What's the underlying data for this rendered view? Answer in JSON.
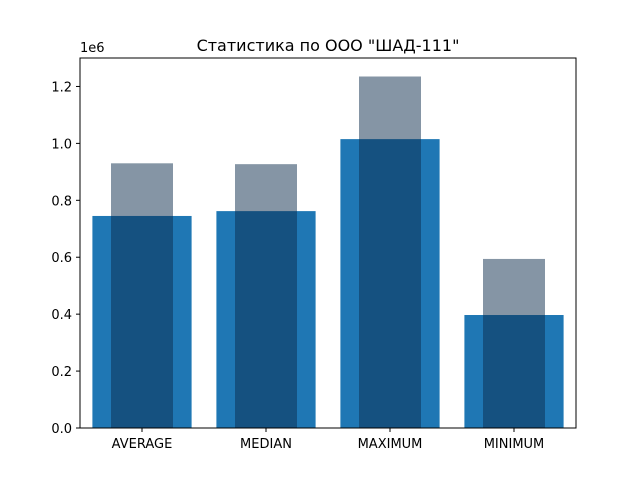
{
  "chart_data": {
    "type": "bar",
    "title": "Статистика по ООО \"ШАД-111\"",
    "xlabel": "",
    "ylabel": "",
    "y_offset_label": "1e6",
    "categories": [
      "AVERAGE",
      "MEDIAN",
      "MAXIMUM",
      "MINIMUM"
    ],
    "ylim": [
      0,
      1.3
    ],
    "yticks": [
      "0.0",
      "0.2",
      "0.4",
      "0.6",
      "0.8",
      "1.0",
      "1.2"
    ],
    "grid": false,
    "legend": "none",
    "series": [
      {
        "values": [
          0.745,
          0.762,
          1.015,
          0.397
        ],
        "color": "#1f77b4",
        "opacity": 1.0,
        "bar_width": 0.8
      },
      {
        "values": [
          0.93,
          0.927,
          1.235,
          0.594
        ],
        "color": "#0b2c4c",
        "opacity": 0.5,
        "bar_width": 0.5
      }
    ]
  }
}
